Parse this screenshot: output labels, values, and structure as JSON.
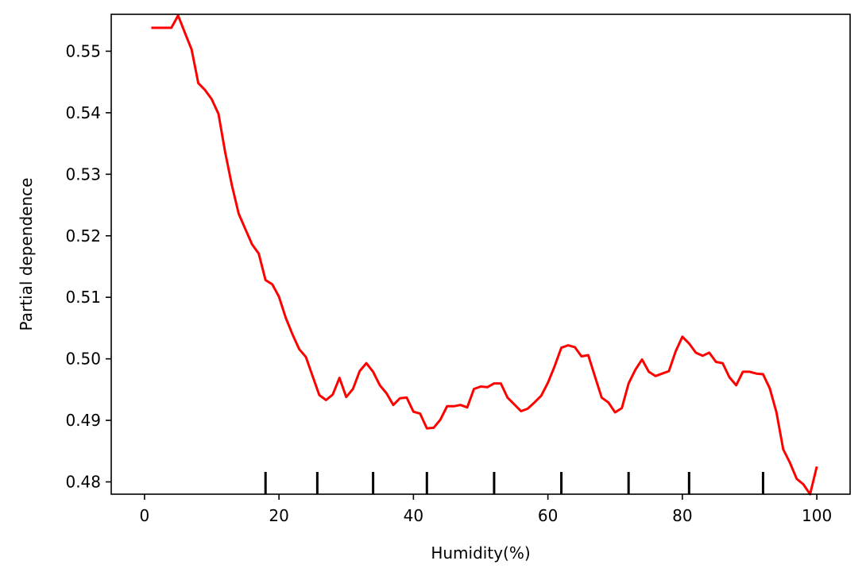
{
  "chart_data": {
    "type": "line",
    "title": "",
    "xlabel": "Humidity(%)",
    "ylabel": "Partial dependence",
    "xlim": [
      -4.95,
      104.95
    ],
    "ylim": [
      0.478,
      0.556
    ],
    "xticks": [
      0,
      20,
      40,
      60,
      80,
      100
    ],
    "xtick_labels": [
      "0",
      "20",
      "40",
      "60",
      "80",
      "100"
    ],
    "yticks": [
      0.48,
      0.49,
      0.5,
      0.51,
      0.52,
      0.53,
      0.54,
      0.55
    ],
    "ytick_labels": [
      "0.48",
      "0.49",
      "0.50",
      "0.51",
      "0.52",
      "0.53",
      "0.54",
      "0.55"
    ],
    "grid": false,
    "series": [
      {
        "color": "#ff0000",
        "x": [
          1,
          2,
          3,
          4,
          5,
          6,
          7,
          8,
          9,
          10,
          11,
          12,
          13,
          14,
          15,
          16,
          17,
          18,
          19,
          20,
          21,
          22,
          23,
          24,
          25,
          26,
          27,
          28,
          29,
          30,
          31,
          32,
          33,
          34,
          35,
          36,
          37,
          38,
          39,
          40,
          41,
          42,
          43,
          44,
          45,
          46,
          47,
          48,
          49,
          50,
          51,
          52,
          53,
          54,
          55,
          56,
          57,
          58,
          59,
          60,
          61,
          62,
          63,
          64,
          65,
          66,
          67,
          68,
          69,
          70,
          71,
          72,
          73,
          74,
          75,
          76,
          77,
          78,
          79,
          80,
          81,
          82,
          83,
          84,
          85,
          86,
          87,
          88,
          89,
          90,
          91,
          92,
          93,
          94,
          95,
          96,
          97,
          98,
          99,
          100
        ],
        "y": [
          0.5538,
          0.5538,
          0.5538,
          0.5538,
          0.5558,
          0.553,
          0.5503,
          0.5448,
          0.5437,
          0.5422,
          0.5398,
          0.5336,
          0.5282,
          0.5236,
          0.5211,
          0.5186,
          0.5171,
          0.5128,
          0.5121,
          0.5101,
          0.5067,
          0.504,
          0.5016,
          0.5003,
          0.4972,
          0.4941,
          0.4933,
          0.4942,
          0.4969,
          0.4938,
          0.4951,
          0.498,
          0.4993,
          0.4979,
          0.4957,
          0.4944,
          0.4925,
          0.4936,
          0.4937,
          0.4914,
          0.4911,
          0.4887,
          0.4888,
          0.4901,
          0.4923,
          0.4923,
          0.4925,
          0.4921,
          0.4951,
          0.4955,
          0.4954,
          0.496,
          0.496,
          0.4937,
          0.4926,
          0.4915,
          0.4919,
          0.4929,
          0.494,
          0.4961,
          0.4988,
          0.5018,
          0.5022,
          0.5019,
          0.5004,
          0.5006,
          0.4971,
          0.4937,
          0.4929,
          0.4913,
          0.492,
          0.496,
          0.4982,
          0.4999,
          0.4979,
          0.4972,
          0.4976,
          0.498,
          0.5012,
          0.5036,
          0.5025,
          0.501,
          0.5005,
          0.501,
          0.4995,
          0.4993,
          0.497,
          0.4957,
          0.4979,
          0.4979,
          0.4976,
          0.4975,
          0.4952,
          0.4913,
          0.4853,
          0.4831,
          0.4805,
          0.4796,
          0.478,
          0.4825
        ]
      }
    ],
    "deciles": [
      18,
      25.7,
      34,
      42,
      52,
      62,
      72,
      81,
      92
    ]
  }
}
